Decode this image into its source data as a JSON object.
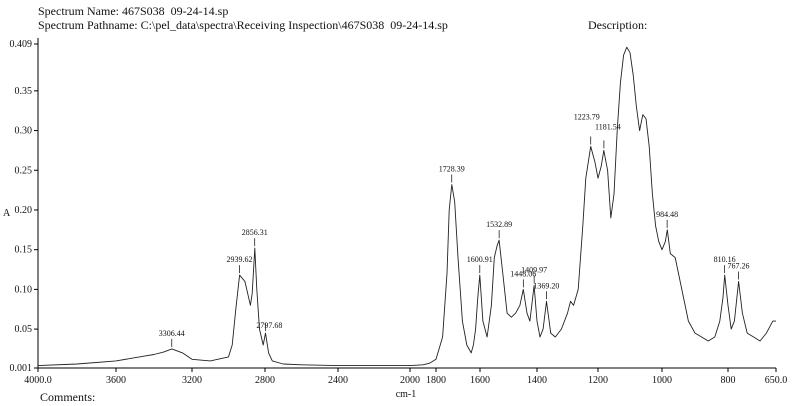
{
  "header": {
    "spectrum_name": "Spectrum Name: 467S038  09-24-14.sp",
    "spectrum_pathname": "Spectrum Pathname: C:\\pel_data\\spectra\\Receiving Inspection\\467S038  09-24-14.sp",
    "description": "Description:",
    "comments": "Comments:"
  },
  "chart_data": {
    "type": "line",
    "xlabel": "cm-1",
    "ylabel": "A",
    "xlim": [
      4000,
      650
    ],
    "ylim": [
      0.001,
      0.409
    ],
    "x_ticks": [
      4000,
      3600,
      3200,
      2800,
      2400,
      2000,
      1800,
      1600,
      1400,
      1200,
      1000,
      800,
      650
    ],
    "x_tick_labels": [
      "4000.0",
      "3600",
      "3200",
      "2800",
      "2400",
      "2000",
      "1800",
      "1600",
      "1400",
      "1200",
      "1000",
      "800",
      "650.0"
    ],
    "y_ticks": [
      0.001,
      0.05,
      0.1,
      0.15,
      0.2,
      0.25,
      0.3,
      0.35,
      0.409
    ],
    "y_tick_labels": [
      "0.001",
      "0.05",
      "0.10",
      "0.15",
      "0.20",
      "0.25",
      "0.30",
      "0.35",
      "0.409"
    ],
    "series": [
      {
        "x": [
          4000,
          3800,
          3600,
          3500,
          3450,
          3400,
          3350,
          3306,
          3250,
          3200,
          3100,
          3000,
          2980,
          2960,
          2939,
          2910,
          2880,
          2870,
          2856,
          2845,
          2830,
          2810,
          2797,
          2780,
          2760,
          2700,
          2600,
          2400,
          2200,
          2000,
          1900,
          1850,
          1800,
          1770,
          1750,
          1740,
          1728,
          1715,
          1700,
          1680,
          1660,
          1640,
          1630,
          1620,
          1610,
          1601,
          1590,
          1575,
          1560,
          1550,
          1540,
          1533,
          1520,
          1505,
          1490,
          1475,
          1460,
          1448,
          1435,
          1425,
          1415,
          1410,
          1400,
          1390,
          1380,
          1369,
          1355,
          1340,
          1320,
          1300,
          1290,
          1280,
          1265,
          1250,
          1240,
          1224,
          1210,
          1200,
          1190,
          1182,
          1170,
          1160,
          1150,
          1140,
          1130,
          1120,
          1110,
          1100,
          1090,
          1080,
          1070,
          1060,
          1050,
          1040,
          1030,
          1020,
          1010,
          1000,
          990,
          984,
          975,
          960,
          940,
          920,
          900,
          880,
          860,
          840,
          825,
          815,
          810,
          800,
          790,
          780,
          767,
          755,
          740,
          720,
          700,
          680,
          660,
          650
        ],
        "y": [
          0.004,
          0.006,
          0.01,
          0.014,
          0.016,
          0.018,
          0.021,
          0.025,
          0.02,
          0.012,
          0.01,
          0.015,
          0.03,
          0.075,
          0.118,
          0.11,
          0.08,
          0.095,
          0.152,
          0.1,
          0.05,
          0.03,
          0.045,
          0.02,
          0.01,
          0.006,
          0.005,
          0.004,
          0.004,
          0.004,
          0.005,
          0.007,
          0.012,
          0.04,
          0.12,
          0.2,
          0.232,
          0.21,
          0.14,
          0.06,
          0.03,
          0.02,
          0.03,
          0.05,
          0.09,
          0.118,
          0.06,
          0.04,
          0.08,
          0.14,
          0.155,
          0.162,
          0.12,
          0.07,
          0.065,
          0.07,
          0.08,
          0.1,
          0.07,
          0.06,
          0.09,
          0.105,
          0.06,
          0.04,
          0.05,
          0.085,
          0.045,
          0.04,
          0.05,
          0.07,
          0.085,
          0.08,
          0.1,
          0.18,
          0.24,
          0.28,
          0.26,
          0.24,
          0.255,
          0.275,
          0.25,
          0.19,
          0.22,
          0.3,
          0.36,
          0.395,
          0.405,
          0.398,
          0.37,
          0.33,
          0.3,
          0.32,
          0.315,
          0.28,
          0.22,
          0.18,
          0.16,
          0.15,
          0.16,
          0.175,
          0.145,
          0.14,
          0.1,
          0.06,
          0.045,
          0.04,
          0.035,
          0.04,
          0.06,
          0.09,
          0.118,
          0.08,
          0.05,
          0.06,
          0.11,
          0.07,
          0.045,
          0.04,
          0.035,
          0.045,
          0.06,
          0.06
        ]
      }
    ],
    "peaks": [
      {
        "label": "3306.44",
        "x": 3306.44,
        "y": 0.025
      },
      {
        "label": "2939.62",
        "x": 2939.62,
        "y": 0.118
      },
      {
        "label": "2856.31",
        "x": 2856.31,
        "y": 0.152
      },
      {
        "label": "2797.68",
        "x": 2797.68,
        "y": 0.045
      },
      {
        "label": "1728.39",
        "x": 1728.39,
        "y": 0.232
      },
      {
        "label": "1600.91",
        "x": 1600.91,
        "y": 0.118
      },
      {
        "label": "1532.89",
        "x": 1532.89,
        "y": 0.162
      },
      {
        "label": "1448.06",
        "x": 1448.06,
        "y": 0.1
      },
      {
        "label": "1409.97",
        "x": 1409.97,
        "y": 0.105
      },
      {
        "label": "1369.20",
        "x": 1369.2,
        "y": 0.085
      },
      {
        "label": "1223.79",
        "x": 1223.79,
        "y": 0.28
      },
      {
        "label": "1181.54",
        "x": 1181.54,
        "y": 0.275
      },
      {
        "label": "984.48",
        "x": 984.48,
        "y": 0.175
      },
      {
        "label": "810.16",
        "x": 810.16,
        "y": 0.118
      },
      {
        "label": "767.26",
        "x": 767.26,
        "y": 0.11
      }
    ]
  }
}
